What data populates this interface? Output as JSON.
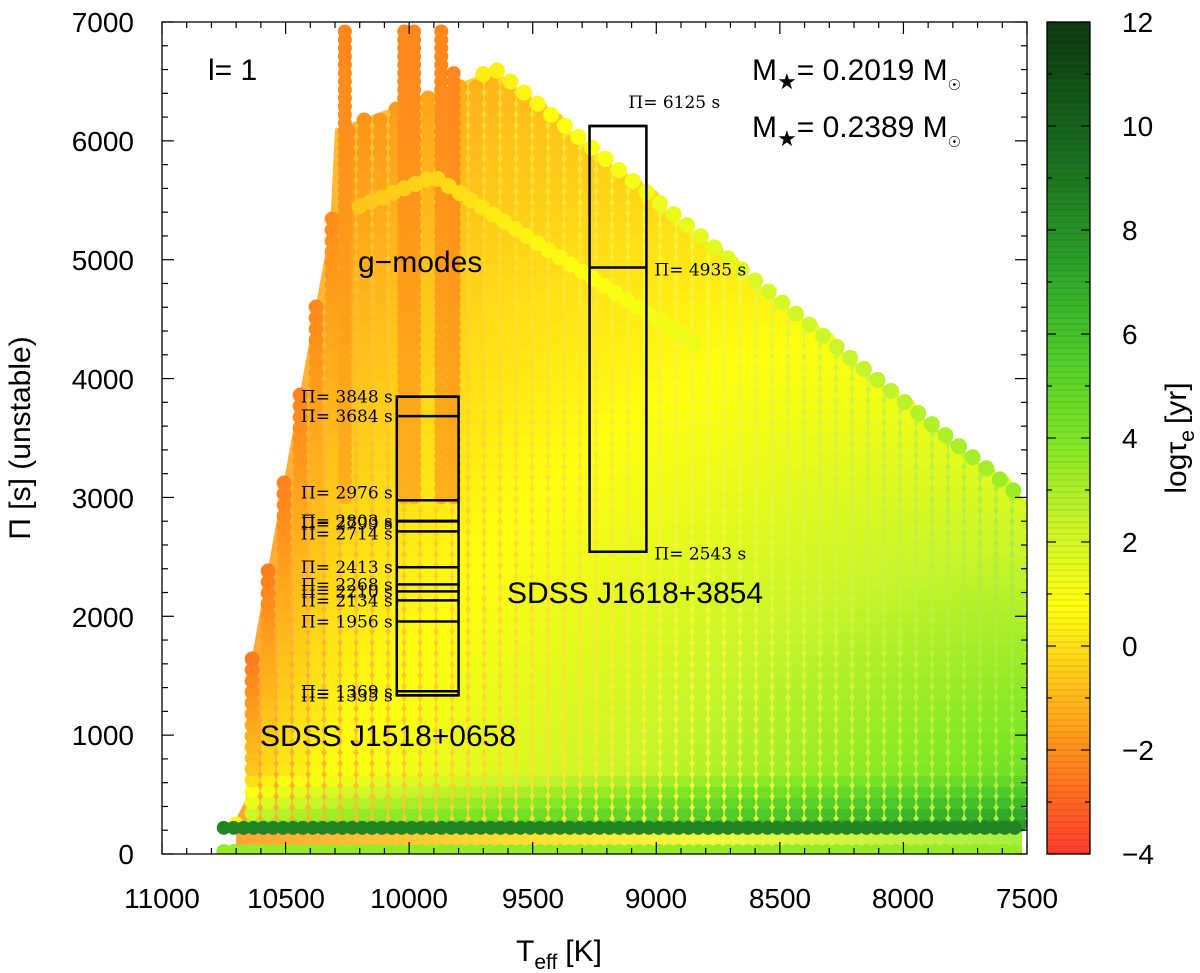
{
  "chart_data": {
    "type": "scatter",
    "title": "",
    "xlabel": "T",
    "xlabel_sub": "eff",
    "xlabel_unit": "[K]",
    "ylabel": "Π [s] (unstable)",
    "colorbar_label": "logτ",
    "colorbar_label_sub": "e",
    "colorbar_label_unit": "[yr]",
    "xlim": [
      11000,
      7500
    ],
    "ylim": [
      0,
      7000
    ],
    "clim": [
      -4,
      12
    ],
    "x_ticks": [
      "11000",
      "10500",
      "10000",
      "9500",
      "9000",
      "8500",
      "8000",
      "7500"
    ],
    "y_ticks": [
      "0",
      "1000",
      "2000",
      "3000",
      "4000",
      "5000",
      "6000",
      "7000"
    ],
    "colorbar_ticks": [
      "−4",
      "−2",
      "0",
      "2",
      "4",
      "6",
      "8",
      "10",
      "12"
    ],
    "colormap": [
      "#ff3b2f",
      "#ff7e1c",
      "#ffc21a",
      "#ffff10",
      "#c8f52a",
      "#7de624",
      "#4ecb2a",
      "#2ea52a",
      "#1f7d22",
      "#145a18",
      "#0d3b10"
    ],
    "annotations": {
      "degree": "l= 1",
      "mass_1_prefix": "M",
      "mass_1_value": "= 0.2019 M",
      "mass_2_prefix": "M",
      "mass_2_value": "= 0.2389 M",
      "g_modes": "g−modes",
      "star_1": "SDSS J1518+0658",
      "star_2": "SDSS J1618+3854"
    },
    "observed_periods": {
      "J1518+0658": {
        "teff_range": [
          10050,
          9800
        ],
        "labels": [
          "Π= 3848 s",
          "Π= 3684 s",
          "Π= 2976 s",
          "Π= 2803 s",
          "Π= 2799 s",
          "Π= 2714 s",
          "Π= 2413 s",
          "Π= 2268 s",
          "Π= 2210 s",
          "Π= 2134 s",
          "Π= 1956 s",
          "Π= 1369 s",
          "Π= 1335 s"
        ],
        "values": [
          3848,
          3684,
          2976,
          2803,
          2799,
          2714,
          2413,
          2268,
          2210,
          2134,
          1956,
          1369,
          1335
        ]
      },
      "J1618+3854": {
        "teff_range": [
          9270,
          9040
        ],
        "labels": [
          "Π= 6125 s",
          "Π= 4935 s",
          "Π= 2543 s"
        ],
        "values": [
          6125,
          4935,
          2543
        ]
      }
    },
    "model_tracks": [
      {
        "name": "M=0.2019 Msun",
        "teff_peak": 9650,
        "period_peak": 6600,
        "teff_end": 7520,
        "period_end": 3000
      },
      {
        "name": "M=0.2389 Msun",
        "teff_peak": 9900,
        "period_peak": 5700,
        "teff_end": 8850,
        "period_end": 4300
      }
    ]
  }
}
